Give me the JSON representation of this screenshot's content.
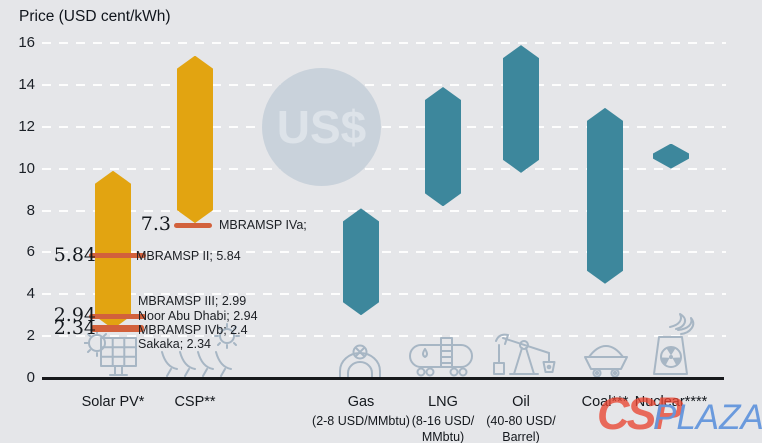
{
  "us_badge_label": "US$",
  "watermark": {
    "part1": "CSP",
    "part2": "PLAZA"
  },
  "colors": {
    "gold": "#e2a411",
    "teal": "#3d879c",
    "tick": "#d2613c",
    "background": "#e5e6e9",
    "axis": "#17191c",
    "gridline": "#fdfdfd",
    "icon_stroke": "#a7b6c4",
    "us_circle": "#c9d2db",
    "us_text": "#dde3e9",
    "watermark_red": "#ea4632",
    "watermark_blue": "#6496dd"
  },
  "chart_data": {
    "type": "bar",
    "subtype": "floating-range-bars",
    "title": "Price (USD cent/kWh)",
    "ylabel": "Price (USD cent/kWh)",
    "xlabel": "",
    "ylim": [
      0,
      16
    ],
    "yticks": [
      0,
      2,
      4,
      6,
      8,
      10,
      12,
      14,
      16
    ],
    "grid": "horizontal-dashed-white",
    "legend": "none",
    "bars": [
      {
        "id": "solar-pv",
        "label": "Solar PV*",
        "sublabel_lines": [],
        "low": 2.34,
        "high": 9.9,
        "color": "gold"
      },
      {
        "id": "csp",
        "label": "CSP**",
        "sublabel_lines": [],
        "low": 7.4,
        "high": 15.4,
        "color": "gold"
      },
      {
        "id": "gas",
        "label": "Gas",
        "sublabel_lines": [
          "(2-8 USD/MMbtu)"
        ],
        "low": 3.0,
        "high": 8.1,
        "color": "teal"
      },
      {
        "id": "lng",
        "label": "LNG",
        "sublabel_lines": [
          "(8-16 USD/",
          "MMbtu)"
        ],
        "low": 8.2,
        "high": 13.9,
        "color": "teal"
      },
      {
        "id": "oil",
        "label": "Oil",
        "sublabel_lines": [
          "(40-80 USD/",
          "Barrel)"
        ],
        "low": 9.8,
        "high": 15.9,
        "color": "teal"
      },
      {
        "id": "coal",
        "label": "Coal***",
        "sublabel_lines": [],
        "low": 4.5,
        "high": 12.9,
        "color": "teal"
      },
      {
        "id": "nuclear",
        "label": "Nuclear****",
        "sublabel_lines": [],
        "low": 10.0,
        "high": 11.2,
        "color": "teal"
      }
    ],
    "price_ticks": [
      {
        "value": 7.3
      },
      {
        "value": 5.84
      },
      {
        "value": 2.94
      },
      {
        "value": 2.4
      },
      {
        "value": 2.34
      }
    ],
    "value_callouts": [
      {
        "text": "7.3",
        "value": 7.3
      },
      {
        "text": "5.84",
        "value": 5.84
      },
      {
        "text": "2.94",
        "value": 2.94
      },
      {
        "text": "2.34",
        "value": 2.34
      }
    ],
    "notes": [
      "MBRAMSP IVa;",
      "MBRAMSP II; 5.84",
      "MBRAMSP III; 2.99",
      "Noor Abu Dhabi; 2.94",
      "MBRAMSP IVb; 2.4",
      "Sakaka; 2.34"
    ],
    "icons": [
      "solar-panel-sun-icon",
      "csp-trough-sun-icon",
      "gas-valve-icon",
      "lng-tanker-icon",
      "oil-pumpjack-icon",
      "coal-cart-icon",
      "nuclear-plant-icon"
    ]
  }
}
